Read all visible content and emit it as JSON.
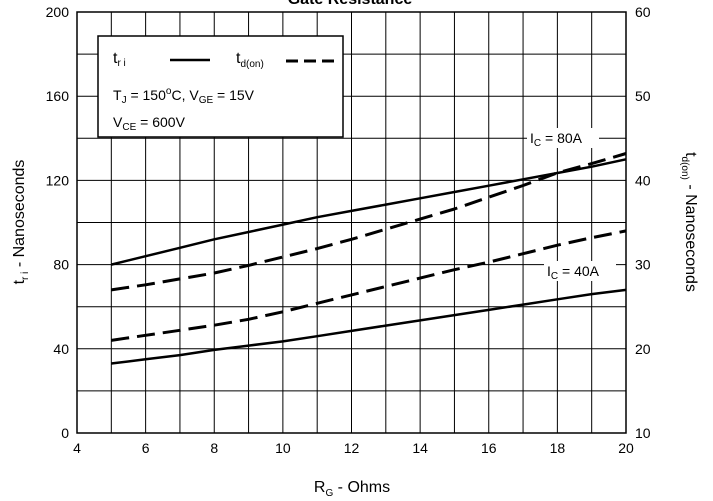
{
  "chart_data": {
    "type": "line",
    "title": "Gate Resistance",
    "xlabel": {
      "main": "R",
      "sub": "G",
      "rest": " - Ohms"
    },
    "ylabel_left": {
      "main": "t",
      "sub": "r i",
      "rest": " - Nanoseconds"
    },
    "ylabel_right": {
      "main": "t",
      "sub": "d(on)",
      "rest": " - Nanoseconds"
    },
    "xlim": [
      4,
      20
    ],
    "ylim_left": [
      0,
      200
    ],
    "ylim_right": [
      10,
      60
    ],
    "x_ticks": [
      "4",
      "6",
      "8",
      "10",
      "12",
      "14",
      "16",
      "18",
      "20"
    ],
    "y_ticks_left": [
      "0",
      "40",
      "80",
      "120",
      "160",
      "200"
    ],
    "y_ticks_right": [
      "10",
      "20",
      "30",
      "40",
      "50",
      "60"
    ],
    "grid": true,
    "legend": {
      "placement": "top-left",
      "tri": {
        "main": "t",
        "sub": "r i"
      },
      "tdon": {
        "main": "t",
        "sub": "d(on)"
      },
      "conditions_1": {
        "a": "T",
        "a_sub": "J",
        "b": " = 150",
        "b_sup": "o",
        "c": "C,  V",
        "c_sub": "GE",
        "d": " = 15V"
      },
      "conditions_2": {
        "a": "V",
        "a_sub": "CE",
        "b": " = 600V"
      }
    },
    "annotations": {
      "ic80": {
        "a": "I",
        "a_sub": "C",
        "b": " = 80A"
      },
      "ic40": {
        "a": "I",
        "a_sub": "C",
        "b": " = 40A"
      }
    },
    "series": [
      {
        "quantity": "tri",
        "axis": "left",
        "style": "solid",
        "condition": "IC = 80A",
        "x": [
          5,
          6,
          7,
          8,
          9,
          10,
          11,
          12,
          13,
          14,
          15,
          16,
          17,
          18,
          19,
          20
        ],
        "values": [
          80,
          84,
          88,
          92,
          95.5,
          99,
          102.5,
          105.5,
          108.5,
          111.5,
          114.5,
          117.5,
          120.5,
          123.5,
          126.5,
          130
        ]
      },
      {
        "quantity": "tri",
        "axis": "left",
        "style": "solid",
        "condition": "IC = 40A",
        "x": [
          5,
          6,
          7,
          8,
          9,
          10,
          11,
          12,
          13,
          14,
          15,
          16,
          17,
          18,
          19,
          20
        ],
        "values": [
          33,
          35,
          37,
          39.5,
          41.5,
          43.5,
          46,
          48.5,
          51,
          53.5,
          56,
          58.5,
          61,
          63.5,
          66,
          68
        ]
      },
      {
        "quantity": "tdon",
        "axis": "right",
        "style": "dashed",
        "condition": "IC = 80A",
        "x": [
          5,
          6,
          7,
          8,
          9,
          10,
          11,
          12,
          13,
          14,
          15,
          16,
          17,
          18,
          19,
          20
        ],
        "values": [
          27,
          27.6,
          28.3,
          29,
          29.9,
          30.9,
          31.9,
          33,
          34.2,
          35.4,
          36.6,
          38,
          39.4,
          40.9,
          42,
          43.2
        ]
      },
      {
        "quantity": "tdon",
        "axis": "right",
        "style": "dashed",
        "condition": "IC = 40A",
        "x": [
          5,
          6,
          7,
          8,
          9,
          10,
          11,
          12,
          13,
          14,
          15,
          16,
          17,
          18,
          19,
          20
        ],
        "values": [
          21,
          21.6,
          22.2,
          22.8,
          23.5,
          24.4,
          25.4,
          26.4,
          27.4,
          28.4,
          29.4,
          30.3,
          31.3,
          32.3,
          33.2,
          34
        ]
      }
    ]
  }
}
